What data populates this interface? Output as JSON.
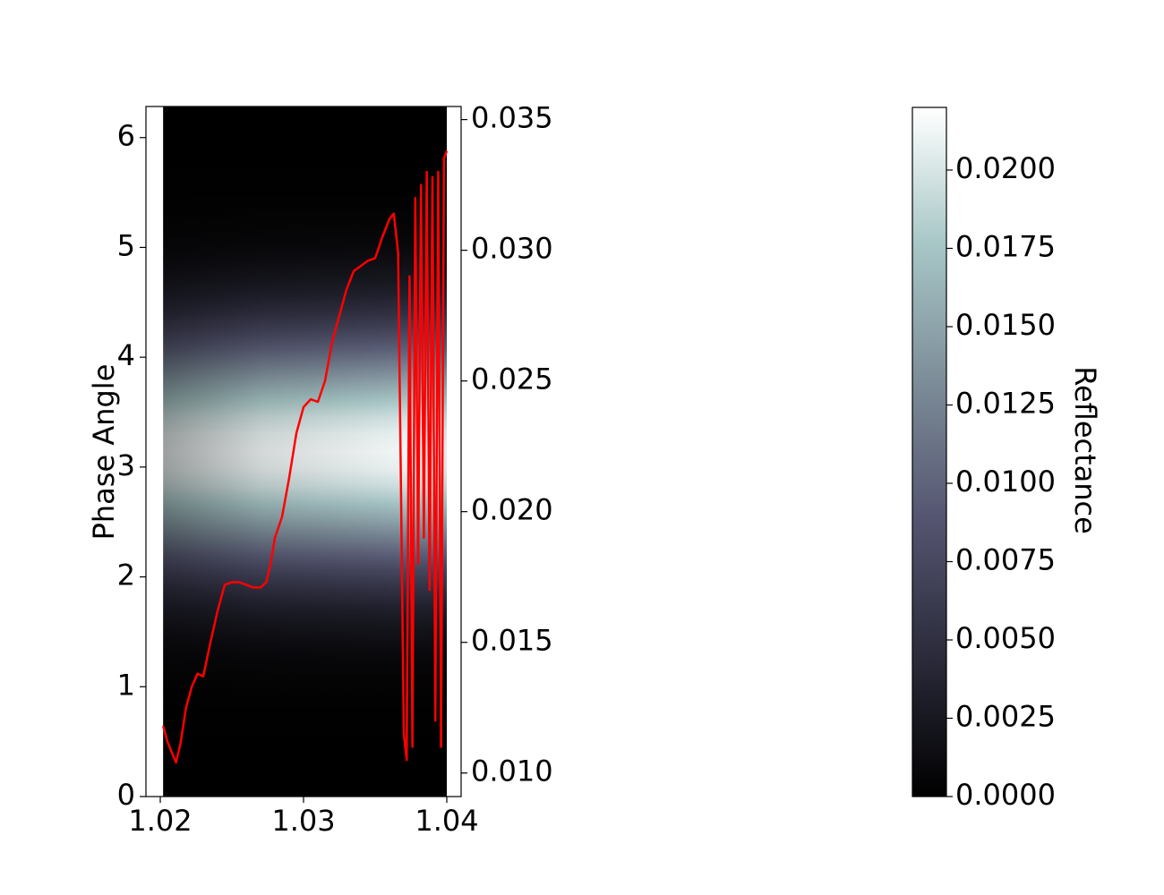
{
  "chart_data": [
    {
      "type": "heatmap",
      "title": "",
      "xlabel": "",
      "ylabel": "Phase Angle",
      "xlim": [
        1.019,
        1.041
      ],
      "ylim": [
        0,
        6.283
      ],
      "data_x_range": [
        1.0202,
        1.04
      ],
      "x_ticks": [
        {
          "value": 1.02,
          "label": "1.02"
        },
        {
          "value": 1.03,
          "label": "1.03"
        },
        {
          "value": 1.04,
          "label": "1.04"
        }
      ],
      "y_ticks": [
        {
          "value": 0,
          "label": "0"
        },
        {
          "value": 1,
          "label": "1"
        },
        {
          "value": 2,
          "label": "2"
        },
        {
          "value": 3,
          "label": "3"
        },
        {
          "value": 4,
          "label": "4"
        },
        {
          "value": 5,
          "label": "5"
        },
        {
          "value": 6,
          "label": "6"
        }
      ],
      "colormap": "bone",
      "colormap_stops": [
        "#000000",
        "#2a2a3a",
        "#545470",
        "#7c8c98",
        "#a7c6c6",
        "#ffffff"
      ],
      "peak_phase": 3.14,
      "peak_reflectance": 0.022,
      "colorbar": {
        "label": "Reflectance",
        "range": [
          0,
          0.022
        ],
        "ticks": [
          {
            "value": 0.0,
            "label": "0.0000"
          },
          {
            "value": 0.0025,
            "label": "0.0025"
          },
          {
            "value": 0.005,
            "label": "0.0050"
          },
          {
            "value": 0.0075,
            "label": "0.0075"
          },
          {
            "value": 0.01,
            "label": "0.0100"
          },
          {
            "value": 0.0125,
            "label": "0.0125"
          },
          {
            "value": 0.015,
            "label": "0.0150"
          },
          {
            "value": 0.0175,
            "label": "0.0175"
          },
          {
            "value": 0.02,
            "label": "0.0200"
          }
        ]
      }
    },
    {
      "type": "line",
      "title": "",
      "xlabel": "",
      "ylabel": "",
      "color": "#ff0000",
      "ylim": [
        0.0091,
        0.0355
      ],
      "y_ticks": [
        {
          "value": 0.01,
          "label": "0.010"
        },
        {
          "value": 0.015,
          "label": "0.015"
        },
        {
          "value": 0.02,
          "label": "0.020"
        },
        {
          "value": 0.025,
          "label": "0.025"
        },
        {
          "value": 0.03,
          "label": "0.030"
        },
        {
          "value": 0.035,
          "label": "0.035"
        }
      ],
      "x": [
        1.0202,
        1.0205,
        1.0208,
        1.0211,
        1.0214,
        1.0218,
        1.0222,
        1.0226,
        1.023,
        1.0235,
        1.024,
        1.0245,
        1.025,
        1.0255,
        1.026,
        1.0265,
        1.027,
        1.0274,
        1.0277,
        1.028,
        1.0285,
        1.029,
        1.0295,
        1.03,
        1.0305,
        1.031,
        1.0315,
        1.032,
        1.0325,
        1.033,
        1.0335,
        1.034,
        1.0345,
        1.035,
        1.0355,
        1.036,
        1.0363,
        1.0366,
        1.0368,
        1.037,
        1.0372,
        1.0374,
        1.0376,
        1.0378,
        1.038,
        1.0382,
        1.0384,
        1.0386,
        1.0388,
        1.039,
        1.0392,
        1.0394,
        1.0396,
        1.0398,
        1.04
      ],
      "y": [
        0.0118,
        0.0112,
        0.0108,
        0.0104,
        0.0111,
        0.0125,
        0.0133,
        0.0138,
        0.0137,
        0.015,
        0.0162,
        0.0172,
        0.0173,
        0.0173,
        0.0172,
        0.0171,
        0.0171,
        0.0173,
        0.018,
        0.019,
        0.0198,
        0.0213,
        0.023,
        0.024,
        0.0243,
        0.0242,
        0.025,
        0.0265,
        0.0275,
        0.0285,
        0.0292,
        0.0294,
        0.0296,
        0.0297,
        0.0305,
        0.0312,
        0.0314,
        0.0299,
        0.021,
        0.0115,
        0.0105,
        0.029,
        0.011,
        0.032,
        0.018,
        0.0325,
        0.019,
        0.033,
        0.017,
        0.0328,
        0.012,
        0.033,
        0.011,
        0.0335,
        0.0338
      ]
    }
  ]
}
